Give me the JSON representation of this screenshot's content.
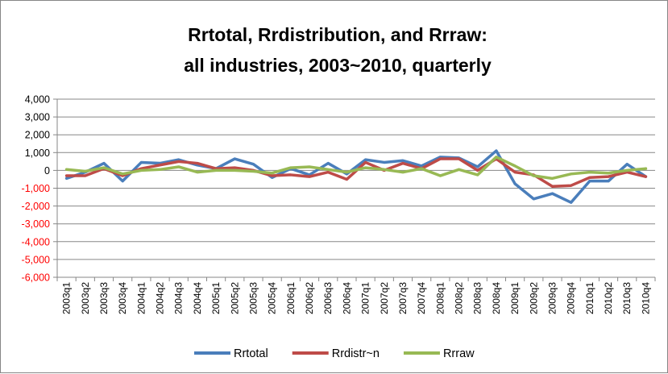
{
  "chart_data": {
    "type": "line",
    "title_lines": [
      "Rrtotal, Rrdistribution, and Rrraw:",
      "all industries, 2003~2010, quarterly"
    ],
    "xlabel": "",
    "ylabel": "",
    "ylim": [
      -6000,
      4000
    ],
    "yticks": [
      "4,000",
      "3,000",
      "2,000",
      "1,000",
      "0",
      "-1,000",
      "-2,000",
      "-3,000",
      "-4,000",
      "-5,000",
      "-6,000"
    ],
    "ytick_values": [
      4000,
      3000,
      2000,
      1000,
      0,
      -1000,
      -2000,
      -3000,
      -4000,
      -5000,
      -6000
    ],
    "negative_tick_color": "#ff0000",
    "positive_tick_color": "#000000",
    "grid": true,
    "legend_position": "bottom",
    "categories": [
      "2003q1",
      "2003q2",
      "2003q3",
      "2003q4",
      "2004q1",
      "2004q2",
      "2004q3",
      "2004q4",
      "2005q1",
      "2005q2",
      "2005q3",
      "2005q4",
      "2006q1",
      "2006q2",
      "2006q3",
      "2006q4",
      "2007q1",
      "2007q2",
      "2007q3",
      "2007q4",
      "2008q1",
      "2008q2",
      "2008q3",
      "2008q4",
      "2009q1",
      "2009q2",
      "2009q3",
      "2009q4",
      "2010q1",
      "2010q2",
      "2010q3",
      "2010q4"
    ],
    "series": [
      {
        "name": "Rrtotal",
        "color": "#4a7ebb",
        "values": [
          -450,
          -100,
          400,
          -600,
          450,
          400,
          600,
          300,
          100,
          650,
          350,
          -400,
          100,
          -250,
          400,
          -200,
          600,
          450,
          550,
          250,
          750,
          700,
          200,
          1100,
          -750,
          -1600,
          -1300,
          -1800,
          -600,
          -600,
          350,
          -350
        ]
      },
      {
        "name": "Rrdistr~n",
        "color": "#be4b48",
        "values": [
          -300,
          -300,
          100,
          -300,
          100,
          300,
          500,
          400,
          100,
          150,
          0,
          -300,
          -250,
          -350,
          -100,
          -500,
          450,
          0,
          400,
          100,
          650,
          650,
          0,
          650,
          -100,
          -250,
          -900,
          -850,
          -400,
          -350,
          -100,
          -350
        ]
      },
      {
        "name": "Rrraw",
        "color": "#98b954",
        "values": [
          50,
          -50,
          150,
          -200,
          0,
          50,
          200,
          -100,
          0,
          0,
          -50,
          -150,
          150,
          200,
          50,
          -100,
          150,
          50,
          -100,
          100,
          -300,
          50,
          -250,
          750,
          250,
          -300,
          -450,
          -200,
          -100,
          -150,
          0,
          100
        ]
      }
    ]
  }
}
